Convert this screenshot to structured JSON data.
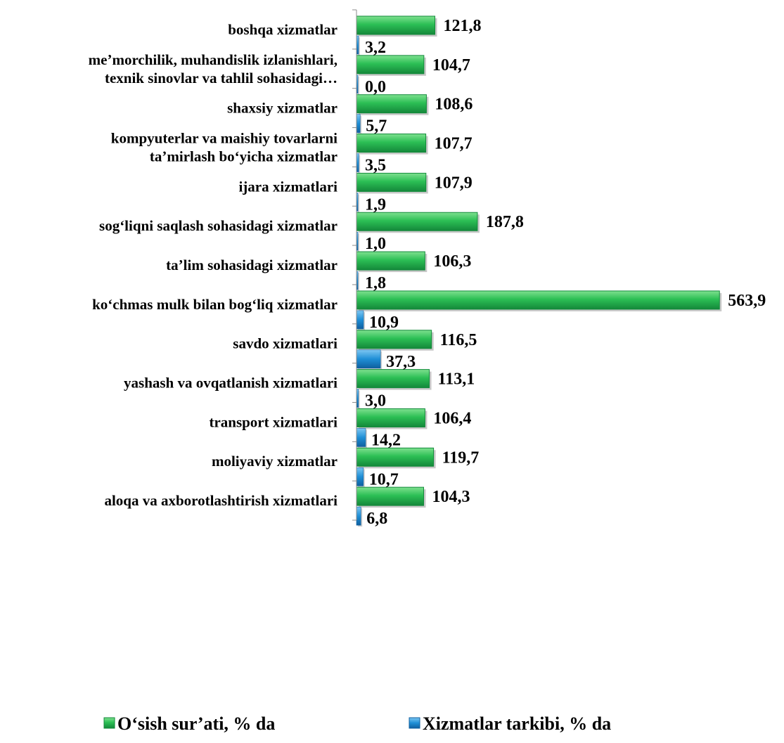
{
  "chart_data": {
    "type": "bar",
    "orientation": "horizontal",
    "categories": [
      [
        "boshqa xizmatlar"
      ],
      [
        "me’morchilik, muhandislik izlanishlari,",
        "texnik sinovlar va tahlil sohasidagi…"
      ],
      [
        "shaxsiy xizmatlar"
      ],
      [
        "kompyuterlar va maishiy tovarlarni",
        "ta’mirlash bo‘yicha xizmatlar"
      ],
      [
        "ijara xizmatlari"
      ],
      [
        "sog‘liqni saqlash sohasidagi xizmatlar"
      ],
      [
        "ta’lim sohasidagi xizmatlar"
      ],
      [
        "ko‘chmas mulk bilan bog‘liq xizmatlar"
      ],
      [
        "savdo xizmatlari"
      ],
      [
        "yashash va ovqatlanish xizmatlari"
      ],
      [
        "transport xizmatlari"
      ],
      [
        "moliyaviy xizmatlar"
      ],
      [
        "aloqa va axborotlashtirish xizmatlari"
      ]
    ],
    "series": [
      {
        "name": "O‘sish sur’ati, % da",
        "color": "#22b24c",
        "values": [
          121.8,
          104.7,
          108.6,
          107.7,
          107.9,
          187.8,
          106.3,
          563.9,
          116.5,
          113.1,
          106.4,
          119.7,
          104.3
        ],
        "labels": [
          "121,8",
          "104,7",
          "108,6",
          "107,7",
          "107,9",
          "187,8",
          "106,3",
          "563,9",
          "116,5",
          "113,1",
          "106,4",
          "119,7",
          "104,3"
        ]
      },
      {
        "name": "Xizmatlar tarkibi, % da",
        "color": "#1f8fd6",
        "values": [
          3.2,
          0.0,
          5.7,
          3.5,
          1.9,
          1.0,
          1.8,
          10.9,
          37.3,
          3.0,
          14.2,
          10.7,
          6.8
        ],
        "labels": [
          "3,2",
          "0,0",
          "5,7",
          "3,5",
          "1,9",
          "1,0",
          "1,8",
          "10,9",
          "37,3",
          "3,0",
          "14,2",
          "10,7",
          "6,8"
        ]
      }
    ],
    "xlim": [
      0,
      600
    ],
    "grid": false,
    "legend_position": "bottom"
  }
}
